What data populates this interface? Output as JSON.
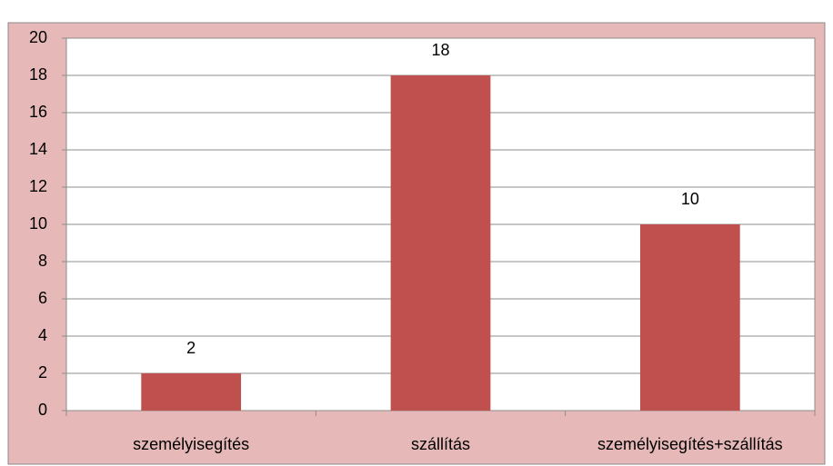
{
  "chart_data": {
    "type": "bar",
    "categories": [
      "személyisegítés",
      "szállítás",
      "személyisegítés+szállítás"
    ],
    "values": [
      2,
      18,
      10
    ],
    "color": "#c0504d",
    "ylim": [
      0,
      20
    ],
    "yticks": [
      0,
      2,
      4,
      6,
      8,
      10,
      12,
      14,
      16,
      18,
      20
    ],
    "grid": true
  }
}
